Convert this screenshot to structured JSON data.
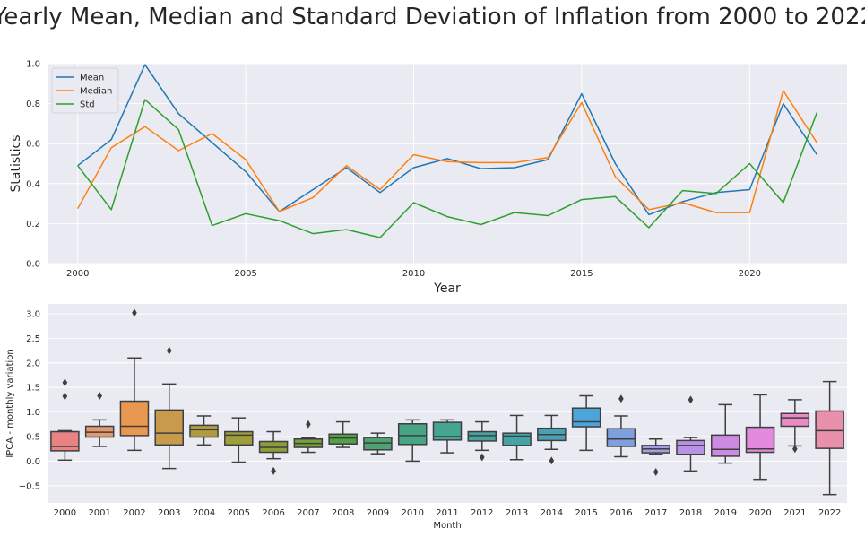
{
  "title": "Yearly Mean, Median and Standard Deviation of Inflation from 2000 to 2022",
  "chart_data": [
    {
      "type": "line",
      "xlabel": "Year",
      "ylabel": "Statistics",
      "x": [
        2000,
        2001,
        2002,
        2003,
        2004,
        2005,
        2006,
        2007,
        2008,
        2009,
        2010,
        2011,
        2012,
        2013,
        2014,
        2015,
        2016,
        2017,
        2018,
        2019,
        2020,
        2021,
        2022
      ],
      "xlim": [
        1999.1,
        2022.9
      ],
      "ylim": [
        0,
        1.0
      ],
      "xticks": [
        2000,
        2005,
        2010,
        2015,
        2020
      ],
      "yticks": [
        0.0,
        0.2,
        0.4,
        0.6,
        0.8,
        1.0
      ],
      "ytick_labels": [
        "0.0",
        "0.2",
        "0.4",
        "0.6",
        "0.8",
        "1.0"
      ],
      "grid": true,
      "legend": "top-left",
      "series": [
        {
          "name": "Mean",
          "color": "#1f77b4",
          "values": [
            0.49,
            0.62,
            0.995,
            0.75,
            0.605,
            0.46,
            0.26,
            0.37,
            0.48,
            0.355,
            0.48,
            0.525,
            0.475,
            0.48,
            0.52,
            0.85,
            0.5,
            0.245,
            0.31,
            0.355,
            0.37,
            0.8,
            0.545
          ]
        },
        {
          "name": "Median",
          "color": "#ff7f0e",
          "values": [
            0.275,
            0.58,
            0.685,
            0.565,
            0.65,
            0.52,
            0.26,
            0.33,
            0.49,
            0.37,
            0.545,
            0.51,
            0.505,
            0.505,
            0.53,
            0.805,
            0.435,
            0.27,
            0.305,
            0.255,
            0.255,
            0.865,
            0.605
          ]
        },
        {
          "name": "Std",
          "color": "#2ca02c",
          "values": [
            0.49,
            0.27,
            0.82,
            0.67,
            0.19,
            0.25,
            0.215,
            0.15,
            0.17,
            0.13,
            0.305,
            0.235,
            0.195,
            0.255,
            0.24,
            0.32,
            0.335,
            0.18,
            0.365,
            0.35,
            0.5,
            0.305,
            0.755
          ]
        }
      ]
    },
    {
      "type": "box",
      "xlabel": "Month",
      "ylabel": "IPCA - monthly variation",
      "categories": [
        "2000",
        "2001",
        "2002",
        "2003",
        "2004",
        "2005",
        "2006",
        "2007",
        "2008",
        "2009",
        "2010",
        "2011",
        "2012",
        "2013",
        "2014",
        "2015",
        "2016",
        "2017",
        "2018",
        "2019",
        "2020",
        "2021",
        "2022"
      ],
      "ylim": [
        -0.85,
        3.2
      ],
      "yticks": [
        -0.5,
        0.0,
        0.5,
        1.0,
        1.5,
        2.0,
        2.5,
        3.0
      ],
      "ytick_labels": [
        "−0.5",
        "0.0",
        "0.5",
        "1.0",
        "1.5",
        "2.0",
        "2.5",
        "3.0"
      ],
      "grid": true,
      "boxes": [
        {
          "whislo": 0.02,
          "q1": 0.21,
          "med": 0.3,
          "q3": 0.6,
          "whishi": 0.62,
          "fliers": [
            1.32,
            1.6
          ],
          "color": "#e88384"
        },
        {
          "whislo": 0.3,
          "q1": 0.49,
          "med": 0.59,
          "q3": 0.71,
          "whishi": 0.84,
          "fliers": [
            1.33
          ],
          "color": "#e29a6f"
        },
        {
          "whislo": 0.22,
          "q1": 0.52,
          "med": 0.71,
          "q3": 1.22,
          "whishi": 2.1,
          "fliers": [
            3.02
          ],
          "color": "#e8984f"
        },
        {
          "whislo": -0.15,
          "q1": 0.33,
          "med": 0.57,
          "q3": 1.04,
          "whishi": 1.57,
          "fliers": [
            2.25
          ],
          "color": "#c89b4c"
        },
        {
          "whislo": 0.33,
          "q1": 0.49,
          "med": 0.64,
          "q3": 0.73,
          "whishi": 0.92,
          "fliers": [],
          "color": "#b09b42"
        },
        {
          "whislo": -0.02,
          "q1": 0.33,
          "med": 0.53,
          "q3": 0.6,
          "whishi": 0.88,
          "fliers": [],
          "color": "#9e9e3c"
        },
        {
          "whislo": 0.05,
          "q1": 0.18,
          "med": 0.28,
          "q3": 0.4,
          "whishi": 0.6,
          "fliers": [
            -0.2
          ],
          "color": "#8e9c3a"
        },
        {
          "whislo": 0.18,
          "q1": 0.28,
          "med": 0.36,
          "q3": 0.45,
          "whishi": 0.47,
          "fliers": [
            0.75
          ],
          "color": "#74a23c"
        },
        {
          "whislo": 0.28,
          "q1": 0.35,
          "med": 0.47,
          "q3": 0.55,
          "whishi": 0.8,
          "fliers": [],
          "color": "#52a048"
        },
        {
          "whislo": 0.15,
          "q1": 0.23,
          "med": 0.37,
          "q3": 0.48,
          "whishi": 0.57,
          "fliers": [],
          "color": "#4ea371"
        },
        {
          "whislo": 0.0,
          "q1": 0.34,
          "med": 0.52,
          "q3": 0.76,
          "whishi": 0.84,
          "fliers": [],
          "color": "#46a584"
        },
        {
          "whislo": 0.17,
          "q1": 0.43,
          "med": 0.5,
          "q3": 0.79,
          "whishi": 0.84,
          "fliers": [],
          "color": "#45a591"
        },
        {
          "whislo": 0.22,
          "q1": 0.41,
          "med": 0.52,
          "q3": 0.6,
          "whishi": 0.8,
          "fliers": [
            0.08
          ],
          "color": "#44a39c"
        },
        {
          "whislo": 0.03,
          "q1": 0.32,
          "med": 0.51,
          "q3": 0.57,
          "whishi": 0.93,
          "fliers": [],
          "color": "#45a3a8"
        },
        {
          "whislo": 0.24,
          "q1": 0.42,
          "med": 0.54,
          "q3": 0.67,
          "whishi": 0.93,
          "fliers": [
            0.01
          ],
          "color": "#47a2b4"
        },
        {
          "whislo": 0.22,
          "q1": 0.7,
          "med": 0.8,
          "q3": 1.08,
          "whishi": 1.33,
          "fliers": [],
          "color": "#4aa6d8"
        },
        {
          "whislo": 0.09,
          "q1": 0.3,
          "med": 0.45,
          "q3": 0.66,
          "whishi": 0.92,
          "fliers": [
            1.27
          ],
          "color": "#7ea0df"
        },
        {
          "whislo": 0.14,
          "q1": 0.17,
          "med": 0.25,
          "q3": 0.32,
          "whishi": 0.45,
          "fliers": [
            -0.22
          ],
          "color": "#9e9ee3"
        },
        {
          "whislo": -0.2,
          "q1": 0.14,
          "med": 0.32,
          "q3": 0.42,
          "whishi": 0.48,
          "fliers": [
            1.25
          ],
          "color": "#b792e5"
        },
        {
          "whislo": -0.04,
          "q1": 0.1,
          "med": 0.24,
          "q3": 0.53,
          "whishi": 1.15,
          "fliers": [],
          "color": "#cc8ae3"
        },
        {
          "whislo": -0.37,
          "q1": 0.18,
          "med": 0.25,
          "q3": 0.69,
          "whishi": 1.35,
          "fliers": [],
          "color": "#e38ade"
        },
        {
          "whislo": 0.31,
          "q1": 0.71,
          "med": 0.88,
          "q3": 0.97,
          "whishi": 1.25,
          "fliers": [
            0.25
          ],
          "color": "#e98ac4"
        },
        {
          "whislo": -0.68,
          "q1": 0.26,
          "med": 0.62,
          "q3": 1.02,
          "whishi": 1.62,
          "fliers": [],
          "color": "#e890ac"
        }
      ]
    }
  ]
}
